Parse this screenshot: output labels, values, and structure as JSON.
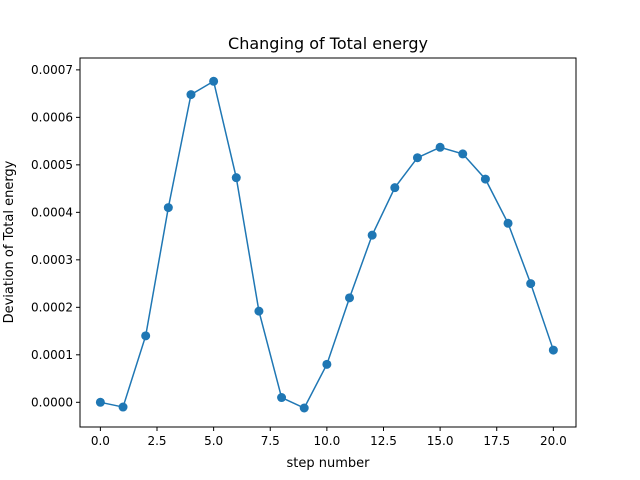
{
  "chart_data": {
    "type": "line",
    "title": "Changing of Total energy",
    "xlabel": "step number",
    "ylabel": "Deviation of Total energy",
    "x": [
      0,
      1,
      2,
      3,
      4,
      5,
      6,
      7,
      8,
      9,
      10,
      11,
      12,
      13,
      14,
      15,
      16,
      17,
      18,
      19,
      20
    ],
    "series": [
      {
        "values": [
          0.0,
          -1e-05,
          0.00014,
          0.00041,
          0.000648,
          0.000676,
          0.000473,
          0.000192,
          1e-05,
          -1.2e-05,
          8e-05,
          0.00022,
          0.000352,
          0.000452,
          0.000515,
          0.000537,
          0.000523,
          0.00047,
          0.000377,
          0.00025,
          0.00011
        ],
        "color": "#1f77b4",
        "marker": "circle"
      }
    ],
    "xlim": [
      -0.9,
      21.0
    ],
    "ylim": [
      -5.2e-05,
      0.000725
    ],
    "xticks": [
      "0.0",
      "2.5",
      "5.0",
      "7.5",
      "10.0",
      "12.5",
      "15.0",
      "17.5",
      "20.0"
    ],
    "yticks": [
      "0.0000",
      "0.0001",
      "0.0002",
      "0.0003",
      "0.0004",
      "0.0005",
      "0.0006",
      "0.0007"
    ],
    "grid": false,
    "legend": "none"
  }
}
